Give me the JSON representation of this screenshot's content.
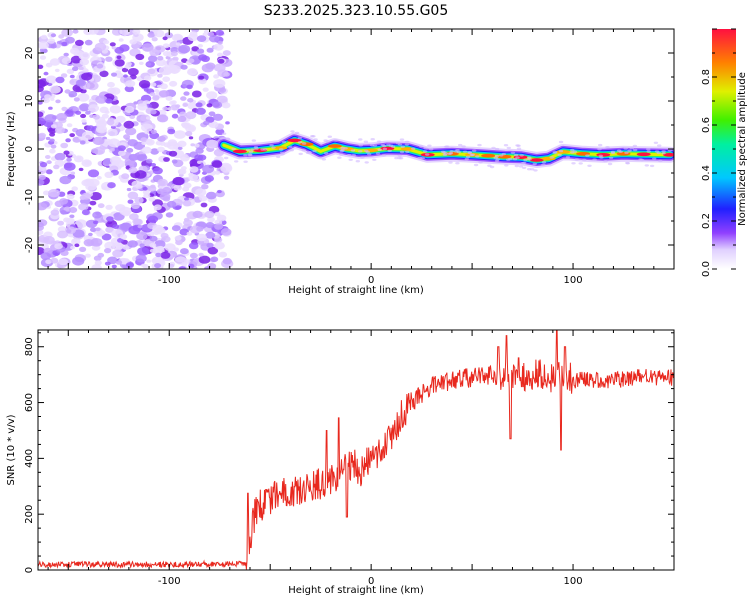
{
  "title": "S233.2025.323.10.55.G05",
  "colors": {
    "snr_line": "#e8281e",
    "axis": "#000000",
    "noise": "#7a22e6"
  },
  "chart_data": [
    {
      "type": "heatmap",
      "title": "S233.2025.323.10.55.G05",
      "xlabel": "Height of straight line (km)",
      "ylabel": "Frequency (Hz)",
      "xlim": [
        -165,
        150
      ],
      "ylim": [
        -25,
        25
      ],
      "xticks": [
        -100,
        0,
        100
      ],
      "yticks": [
        -20,
        -10,
        0,
        10,
        20
      ],
      "colorbar": {
        "label": "Normalized spectral amplitude",
        "range": [
          0,
          1
        ],
        "ticks": [
          "0.0",
          "0.2",
          "0.4",
          "0.6",
          "0.8"
        ]
      },
      "noise_region_x": [
        -165,
        -71
      ],
      "ridge": {
        "x": [
          -73,
          -65,
          -55,
          -45,
          -38,
          -32,
          -25,
          -18,
          -12,
          -6,
          0,
          8,
          18,
          28,
          40,
          50,
          58,
          66,
          74,
          82,
          88,
          95,
          105,
          115,
          125,
          135,
          148
        ],
        "freq": [
          0.8,
          -0.5,
          -0.3,
          0.2,
          1.8,
          1.0,
          -0.5,
          0.6,
          0.0,
          -0.4,
          -0.3,
          0.1,
          0.0,
          -1.2,
          -1.0,
          -1.2,
          -1.4,
          -1.6,
          -1.7,
          -2.3,
          -2.0,
          -0.6,
          -1.0,
          -1.2,
          -1.0,
          -1.1,
          -1.2
        ],
        "amp": [
          0.45,
          0.95,
          0.9,
          0.7,
          0.95,
          0.85,
          0.65,
          0.85,
          0.7,
          0.6,
          0.75,
          0.9,
          0.7,
          0.9,
          0.85,
          0.75,
          0.8,
          0.85,
          0.9,
          0.95,
          0.7,
          0.7,
          0.85,
          0.95,
          0.8,
          0.9,
          0.95
        ]
      }
    },
    {
      "type": "line",
      "xlabel": "Height of straight line (km)",
      "ylabel": "SNR (10 * v/v)",
      "xlim": [
        -165,
        150
      ],
      "ylim": [
        0,
        860
      ],
      "xticks": [
        -100,
        0,
        100
      ],
      "yticks": [
        0,
        200,
        400,
        600,
        800
      ],
      "series": [
        {
          "name": "SNR",
          "x": [
            -165,
            -100,
            -70,
            -62,
            -60,
            -58,
            -55,
            -48,
            -40,
            -30,
            -20,
            -15,
            -10,
            -5,
            0,
            5,
            10,
            15,
            20,
            25,
            30,
            40,
            50,
            60,
            65,
            70,
            75,
            80,
            85,
            90,
            95,
            100,
            110,
            120,
            130,
            150
          ],
          "y": [
            20,
            20,
            22,
            25,
            100,
            190,
            230,
            260,
            280,
            300,
            320,
            350,
            380,
            360,
            400,
            430,
            480,
            560,
            600,
            630,
            660,
            680,
            690,
            700,
            700,
            690,
            690,
            700,
            700,
            690,
            710,
            680,
            680,
            680,
            690,
            690
          ],
          "spikes": [
            {
              "x": -61,
              "y": 275
            },
            {
              "x": -22,
              "y": 500
            },
            {
              "x": -16,
              "y": 545
            },
            {
              "x": -12,
              "y": 190
            },
            {
              "x": 63,
              "y": 800
            },
            {
              "x": 67,
              "y": 840
            },
            {
              "x": 69,
              "y": 470
            },
            {
              "x": 73,
              "y": 760
            },
            {
              "x": 92,
              "y": 860
            },
            {
              "x": 94,
              "y": 430
            },
            {
              "x": 96,
              "y": 800
            }
          ]
        }
      ]
    }
  ]
}
